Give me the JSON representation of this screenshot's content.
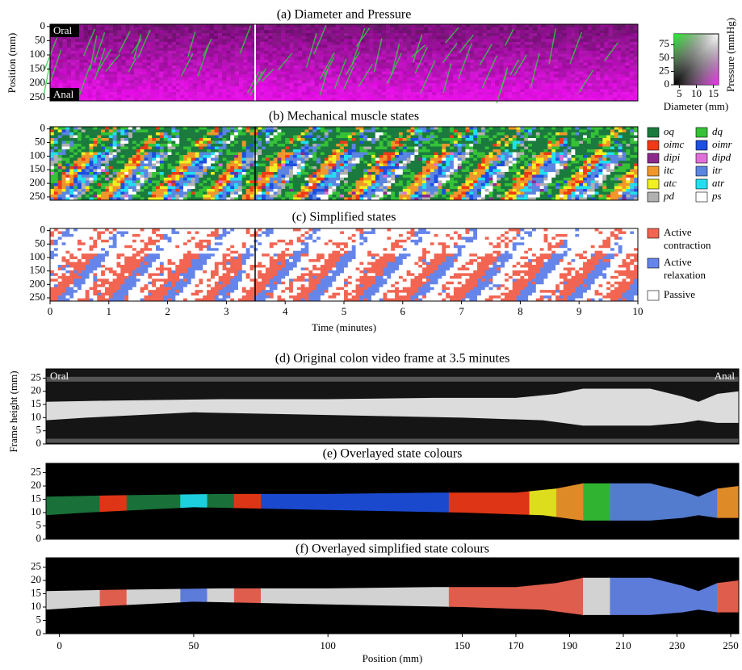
{
  "time_axis": {
    "xlabel": "Time (minutes)",
    "xlim": [
      0,
      10
    ],
    "xticks": [
      0,
      1,
      2,
      3,
      4,
      5,
      6,
      7,
      8,
      9,
      10
    ]
  },
  "panel_a": {
    "title": "(a) Diameter and Pressure",
    "ylabel": "Position (mm)",
    "ylim": [
      -8,
      262
    ],
    "yticks": [
      0,
      50,
      100,
      150,
      200,
      250
    ],
    "top_label": "Oral",
    "bottom_label": "Anal"
  },
  "colorbar": {
    "ylabel": "Pressure (mmHg)",
    "xlabel": "Diameter (mm)",
    "ylim": [
      0,
      95
    ],
    "yticks": [
      0,
      25,
      50,
      75
    ],
    "xlim": [
      3.5,
      16.5
    ],
    "xticks": [
      5,
      10,
      15
    ]
  },
  "panel_b": {
    "title": "(b) Mechanical muscle states",
    "ylim": [
      -8,
      262
    ],
    "yticks": [
      0,
      50,
      100,
      150,
      200,
      250
    ],
    "legend": [
      {
        "name": "oq",
        "color": "#1b7a3e"
      },
      {
        "name": "dq",
        "color": "#35c236"
      },
      {
        "name": "oimc",
        "color": "#f03a17"
      },
      {
        "name": "oimr",
        "color": "#1d4fe0"
      },
      {
        "name": "dipi",
        "color": "#8b2a8a"
      },
      {
        "name": "dipd",
        "color": "#e070d8"
      },
      {
        "name": "itc",
        "color": "#f0962a"
      },
      {
        "name": "itr",
        "color": "#5a85e0"
      },
      {
        "name": "atc",
        "color": "#f0f020"
      },
      {
        "name": "atr",
        "color": "#20e0f0"
      },
      {
        "name": "pd",
        "color": "#b0b0b0"
      },
      {
        "name": "ps",
        "color": "#ffffff"
      }
    ]
  },
  "panel_c": {
    "title": "(c) Simplified states",
    "ylim": [
      -8,
      262
    ],
    "yticks": [
      0,
      50,
      100,
      150,
      200,
      250
    ],
    "legend": [
      {
        "name": "Active contraction",
        "color": "#f26552"
      },
      {
        "name": "Active relaxation",
        "color": "#6585ea"
      },
      {
        "name": "Passive",
        "color": "#ffffff"
      }
    ]
  },
  "panel_d": {
    "title": "(d) Original colon video frame at 3.5 minutes",
    "ylabel": "Frame height (mm)",
    "ylim": [
      0,
      28.5
    ],
    "yticks": [
      0,
      5,
      10,
      15,
      20,
      25
    ],
    "left_label": "Oral",
    "right_label": "Anal"
  },
  "panel_e": {
    "title": "(e) Overlayed state colours",
    "ylim": [
      0,
      28.5
    ],
    "yticks": [
      0,
      5,
      10,
      15,
      20,
      25
    ]
  },
  "panel_f": {
    "title": "(f) Overlayed simplified state colours",
    "ylim": [
      0,
      28.5
    ],
    "yticks": [
      0,
      5,
      10,
      15,
      20,
      25
    ]
  },
  "position_axis": {
    "xlabel": "Position (mm)",
    "xlim": [
      -5,
      253
    ],
    "xticks": [
      0,
      50,
      100,
      150,
      170,
      190,
      210,
      230,
      250
    ]
  }
}
